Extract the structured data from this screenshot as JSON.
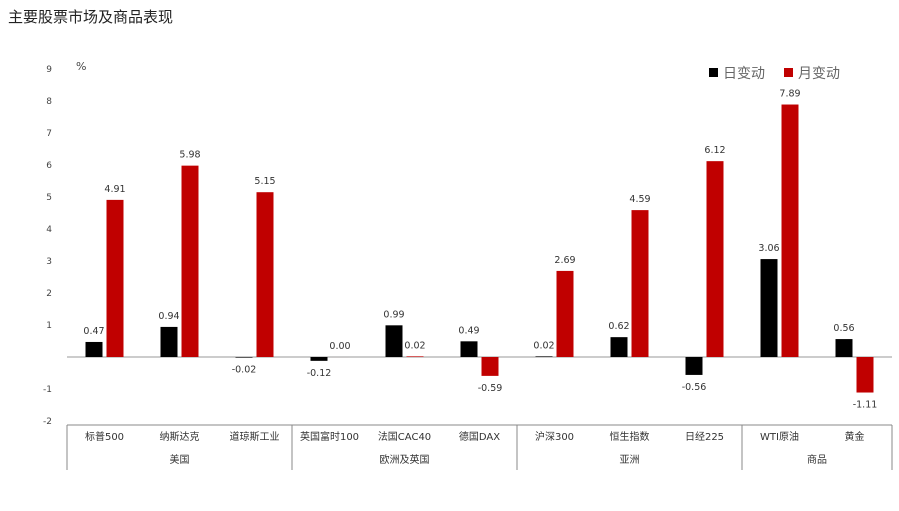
{
  "title": "主要股票市场及商品表现",
  "chart_data": {
    "type": "bar",
    "unit": "%",
    "ylim": [
      -2,
      9
    ],
    "yticks": [
      9,
      8,
      7,
      6,
      5,
      4,
      3,
      2,
      1,
      -1,
      -2
    ],
    "legend_position": "top-right",
    "grid": false,
    "colors": {
      "日变动": "#000000",
      "月变动": "#c00000"
    },
    "categories": [
      "标普500",
      "纳斯达克",
      "道琼斯工业",
      "英国富时100",
      "法国CAC40",
      "德国DAX",
      "沪深300",
      "恒生指数",
      "日经225",
      "WTI原油",
      "黄金"
    ],
    "groups": [
      {
        "name": "美国",
        "count": 3
      },
      {
        "name": "欧洲及英国",
        "count": 3
      },
      {
        "name": "亚洲",
        "count": 3
      },
      {
        "name": "商品",
        "count": 2
      }
    ],
    "series": [
      {
        "name": "日变动",
        "values": [
          0.47,
          0.94,
          -0.02,
          -0.12,
          0.99,
          0.49,
          0.02,
          0.62,
          -0.56,
          3.06,
          0.56
        ]
      },
      {
        "name": "月变动",
        "values": [
          4.91,
          5.98,
          5.15,
          0.0,
          0.02,
          -0.59,
          2.69,
          4.59,
          6.12,
          7.89,
          -1.11
        ]
      }
    ]
  }
}
